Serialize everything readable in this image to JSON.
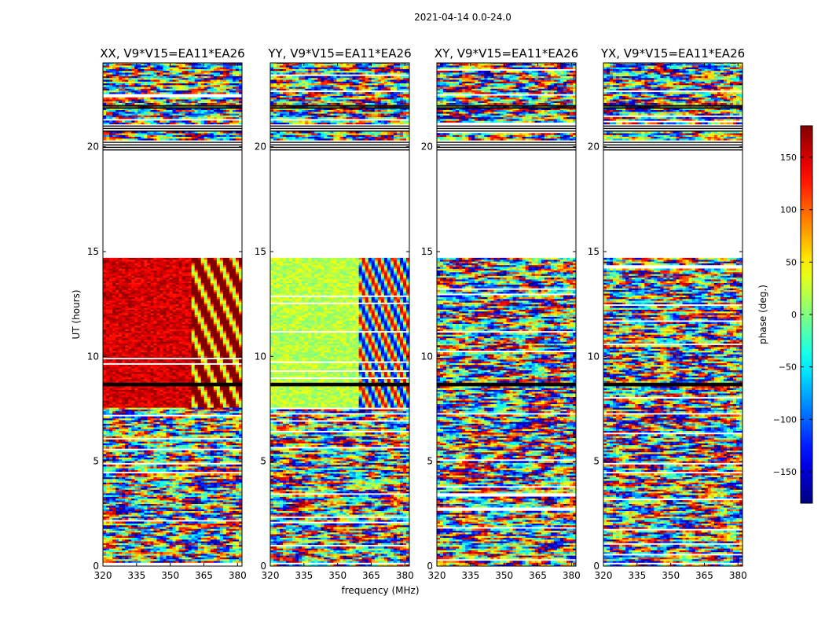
{
  "suptitle": "2021-04-14 0.0-24.0",
  "chart_data": {
    "type": "heatmap",
    "xlabel": "frequency (MHz)",
    "ylabel": "UT (hours)",
    "colorbar_label": "phase (deg.)",
    "xlim": [
      320,
      382
    ],
    "ylim": [
      0,
      24
    ],
    "clim": [
      -180,
      180
    ],
    "colormap": "jet",
    "x_ticks": [
      320,
      335,
      350,
      365,
      380
    ],
    "y_ticks": [
      0,
      5,
      10,
      15,
      20
    ],
    "colorbar_ticks": [
      150,
      100,
      50,
      0,
      -50,
      -100,
      -150
    ],
    "colorbar_tick_labels": [
      "150",
      "100",
      "50",
      "0",
      "−50",
      "−100",
      "−150"
    ],
    "channel_break_mhz": 359,
    "panels": [
      {
        "title": "XX, V9*V15=EA11*EA26",
        "polarization": "XX",
        "coherent_phase_deg": 150,
        "coherent_ut_ranges": [
          [
            7.5,
            14.7
          ]
        ],
        "coherent_phase_high_band_deg": 160
      },
      {
        "title": "YY, V9*V15=EA11*EA26",
        "polarization": "YY",
        "coherent_phase_deg": 20,
        "coherent_ut_ranges": [
          [
            7.5,
            14.7
          ]
        ],
        "coherent_phase_high_band_deg": 0
      },
      {
        "title": "XY, V9*V15=EA11*EA26",
        "polarization": "XY",
        "coherent_phase_deg": null,
        "coherent_ut_ranges": [],
        "coherent_phase_high_band_deg": null
      },
      {
        "title": "YX, V9*V15=EA11*EA26",
        "polarization": "YX",
        "coherent_phase_deg": null,
        "coherent_ut_ranges": [],
        "coherent_phase_high_band_deg": null
      }
    ],
    "flagged_ut_ranges": [
      [
        19.85,
        20.25
      ],
      [
        20.75,
        21.0
      ],
      [
        8.6,
        8.75
      ]
    ],
    "data_ut_ranges": [
      [
        0,
        7.5
      ],
      [
        7.5,
        14.7
      ],
      [
        20.3,
        20.7
      ],
      [
        21.0,
        24.0
      ]
    ],
    "gap_ut_ranges": [
      [
        14.7,
        19.85
      ]
    ]
  }
}
